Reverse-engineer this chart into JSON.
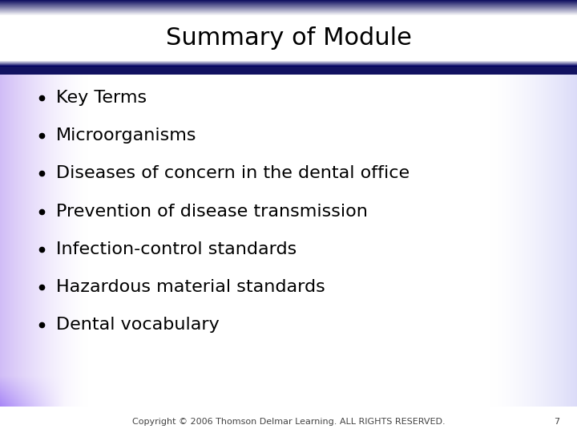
{
  "title": "Summary of Module",
  "bullet_items": [
    "Key Terms",
    "Microorganisms",
    "Diseases of concern in the dental office",
    "Prevention of disease transmission",
    "Infection-control standards",
    "Hazardous material standards",
    "Dental vocabulary"
  ],
  "footer": "Copyright © 2006 Thomson Delmar Learning. ALL RIGHTS RESERVED.",
  "page_number": "7",
  "title_fontsize": 22,
  "bullet_fontsize": 16,
  "footer_fontsize": 8,
  "bg_color": "#ffffff",
  "title_bar_dark": "#1a1a6e",
  "title_text_color": "#000000",
  "bullet_text_color": "#000000",
  "footer_text_color": "#444444"
}
